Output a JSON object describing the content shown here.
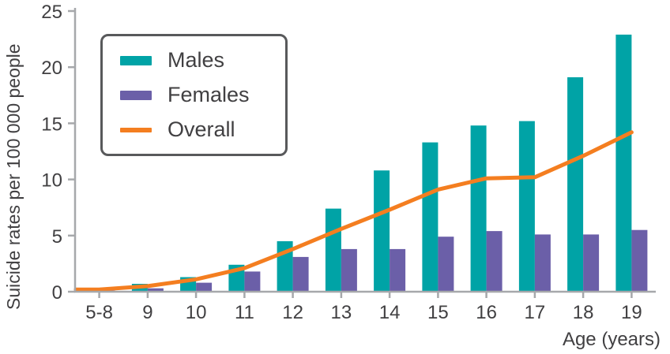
{
  "chart_data": {
    "type": "bar",
    "subtype": "grouped-bars-with-line-overlay",
    "title": "",
    "ylabel": "Suicide rates per 100 000 people",
    "xlabel": "Age (years)",
    "categories": [
      "5-8",
      "9",
      "10",
      "11",
      "12",
      "13",
      "14",
      "15",
      "16",
      "17",
      "18",
      "19"
    ],
    "ylim": [
      0,
      25
    ],
    "yticks": [
      0,
      5,
      10,
      15,
      20,
      25
    ],
    "grid": false,
    "legend_position": "top-left",
    "series": [
      {
        "name": "Males",
        "render": "bar",
        "color": "#00a3a6",
        "values": [
          0.3,
          0.7,
          1.3,
          2.4,
          4.5,
          7.4,
          10.8,
          13.3,
          14.8,
          15.2,
          19.1,
          22.9
        ]
      },
      {
        "name": "Females",
        "render": "bar",
        "color": "#6b5fa8",
        "values": [
          0.1,
          0.3,
          0.8,
          1.8,
          3.1,
          3.8,
          3.8,
          4.9,
          5.4,
          5.1,
          5.1,
          5.5
        ]
      },
      {
        "name": "Overall",
        "render": "line",
        "color": "#f47e20",
        "values": [
          0.2,
          0.5,
          1.1,
          2.1,
          3.8,
          5.6,
          7.3,
          9.1,
          10.1,
          10.2,
          12.1,
          14.2
        ]
      }
    ]
  },
  "style": {
    "axis_color": "#a6a8ab",
    "text_color": "#414042",
    "legend_border_color": "#58595b",
    "background_color": "#ffffff"
  }
}
